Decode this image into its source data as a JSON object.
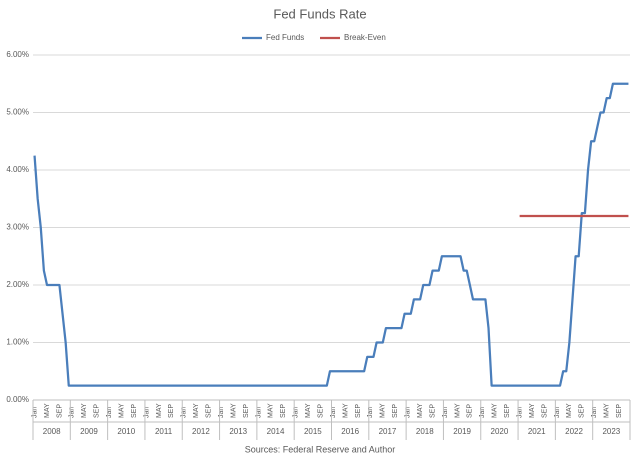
{
  "chart_data": {
    "type": "line",
    "title": "Fed Funds Rate",
    "source": "Sources: Federal Reserve and Author",
    "categories": [
      "Jan",
      null,
      null,
      null,
      "MAY",
      null,
      null,
      null,
      "SEP",
      null,
      null,
      null,
      "Jan",
      null,
      null,
      null,
      "MAY",
      null,
      null,
      null,
      "SEP",
      null,
      null,
      null,
      "Jan",
      null,
      null,
      null,
      "MAY",
      null,
      null,
      null,
      "SEP",
      null,
      null,
      null,
      "Jan",
      null,
      null,
      null,
      "MAY",
      null,
      null,
      null,
      "SEP",
      null,
      null,
      null,
      "Jan",
      null,
      null,
      null,
      "MAY",
      null,
      null,
      null,
      "SEP",
      null,
      null,
      null,
      "Jan",
      null,
      null,
      null,
      "MAY",
      null,
      null,
      null,
      "SEP",
      null,
      null,
      null,
      "Jan",
      null,
      null,
      null,
      "MAY",
      null,
      null,
      null,
      "SEP",
      null,
      null,
      null,
      "Jan",
      null,
      null,
      null,
      "MAY",
      null,
      null,
      null,
      "SEP",
      null,
      null,
      null,
      "Jan",
      null,
      null,
      null,
      "MAY",
      null,
      null,
      null,
      "SEP",
      null,
      null,
      null,
      "Jan",
      null,
      null,
      null,
      "MAY",
      null,
      null,
      null,
      "SEP",
      null,
      null,
      null,
      "Jan",
      null,
      null,
      null,
      "MAY",
      null,
      null,
      null,
      "SEP",
      null,
      null,
      null,
      "Jan",
      null,
      null,
      null,
      "MAY",
      null,
      null,
      null,
      "SEP",
      null,
      null,
      null,
      "Jan",
      null,
      null,
      null,
      "MAY",
      null,
      null,
      null,
      "SEP",
      null,
      null,
      null,
      "Jan",
      null,
      null,
      null,
      "MAY",
      null,
      null,
      null,
      "SEP",
      null,
      null,
      null,
      "Jan",
      null,
      null,
      null,
      "MAY",
      null,
      null,
      null,
      "SEP",
      null,
      null,
      null,
      "Jan",
      null,
      null,
      null,
      "MAY",
      null,
      null,
      null,
      "SEP",
      null,
      null,
      null
    ],
    "year_groups": [
      "2008",
      "2009",
      "2010",
      "2011",
      "2012",
      "2013",
      "2014",
      "2015",
      "2016",
      "2017",
      "2018",
      "2019",
      "2020",
      "2021",
      "2022",
      "2023"
    ],
    "series": [
      {
        "name": "Fed Funds",
        "color": "#4a7ebb",
        "values": [
          4.25,
          3.5,
          3.0,
          2.25,
          2.0,
          2.0,
          2.0,
          2.0,
          2.0,
          1.5,
          1.0,
          0.25,
          0.25,
          0.25,
          0.25,
          0.25,
          0.25,
          0.25,
          0.25,
          0.25,
          0.25,
          0.25,
          0.25,
          0.25,
          0.25,
          0.25,
          0.25,
          0.25,
          0.25,
          0.25,
          0.25,
          0.25,
          0.25,
          0.25,
          0.25,
          0.25,
          0.25,
          0.25,
          0.25,
          0.25,
          0.25,
          0.25,
          0.25,
          0.25,
          0.25,
          0.25,
          0.25,
          0.25,
          0.25,
          0.25,
          0.25,
          0.25,
          0.25,
          0.25,
          0.25,
          0.25,
          0.25,
          0.25,
          0.25,
          0.25,
          0.25,
          0.25,
          0.25,
          0.25,
          0.25,
          0.25,
          0.25,
          0.25,
          0.25,
          0.25,
          0.25,
          0.25,
          0.25,
          0.25,
          0.25,
          0.25,
          0.25,
          0.25,
          0.25,
          0.25,
          0.25,
          0.25,
          0.25,
          0.25,
          0.25,
          0.25,
          0.25,
          0.25,
          0.25,
          0.25,
          0.25,
          0.25,
          0.25,
          0.25,
          0.25,
          0.5,
          0.5,
          0.5,
          0.5,
          0.5,
          0.5,
          0.5,
          0.5,
          0.5,
          0.5,
          0.5,
          0.5,
          0.75,
          0.75,
          0.75,
          1.0,
          1.0,
          1.0,
          1.25,
          1.25,
          1.25,
          1.25,
          1.25,
          1.25,
          1.5,
          1.5,
          1.5,
          1.75,
          1.75,
          1.75,
          2.0,
          2.0,
          2.0,
          2.25,
          2.25,
          2.25,
          2.5,
          2.5,
          2.5,
          2.5,
          2.5,
          2.5,
          2.5,
          2.25,
          2.25,
          2.0,
          1.75,
          1.75,
          1.75,
          1.75,
          1.75,
          1.25,
          0.25,
          0.25,
          0.25,
          0.25,
          0.25,
          0.25,
          0.25,
          0.25,
          0.25,
          0.25,
          0.25,
          0.25,
          0.25,
          0.25,
          0.25,
          0.25,
          0.25,
          0.25,
          0.25,
          0.25,
          0.25,
          0.25,
          0.25,
          0.5,
          0.5,
          1.0,
          1.75,
          2.5,
          2.5,
          3.25,
          3.25,
          4.0,
          4.5,
          4.5,
          4.75,
          5.0,
          5.0,
          5.25,
          5.25,
          5.5,
          5.5,
          5.5,
          5.5,
          5.5,
          5.5
        ]
      },
      {
        "name": "Break-Even",
        "color": "#c0504d",
        "values": [
          null,
          null,
          null,
          null,
          null,
          null,
          null,
          null,
          null,
          null,
          null,
          null,
          null,
          null,
          null,
          null,
          null,
          null,
          null,
          null,
          null,
          null,
          null,
          null,
          null,
          null,
          null,
          null,
          null,
          null,
          null,
          null,
          null,
          null,
          null,
          null,
          null,
          null,
          null,
          null,
          null,
          null,
          null,
          null,
          null,
          null,
          null,
          null,
          null,
          null,
          null,
          null,
          null,
          null,
          null,
          null,
          null,
          null,
          null,
          null,
          null,
          null,
          null,
          null,
          null,
          null,
          null,
          null,
          null,
          null,
          null,
          null,
          null,
          null,
          null,
          null,
          null,
          null,
          null,
          null,
          null,
          null,
          null,
          null,
          null,
          null,
          null,
          null,
          null,
          null,
          null,
          null,
          null,
          null,
          null,
          null,
          null,
          null,
          null,
          null,
          null,
          null,
          null,
          null,
          null,
          null,
          null,
          null,
          null,
          null,
          null,
          null,
          null,
          null,
          null,
          null,
          null,
          null,
          null,
          null,
          null,
          null,
          null,
          null,
          null,
          null,
          null,
          null,
          null,
          null,
          null,
          null,
          null,
          null,
          null,
          null,
          null,
          null,
          null,
          null,
          null,
          null,
          null,
          null,
          null,
          null,
          null,
          null,
          null,
          null,
          null,
          null,
          null,
          null,
          null,
          null,
          3.2,
          3.2,
          3.2,
          3.2,
          3.2,
          3.2,
          3.2,
          3.2,
          3.2,
          3.2,
          3.2,
          3.2,
          3.2,
          3.2,
          3.2,
          3.2,
          3.2,
          3.2,
          3.2,
          3.2,
          3.2,
          3.2,
          3.2,
          3.2,
          3.2,
          3.2,
          3.2,
          3.2,
          3.2,
          3.2,
          3.2,
          3.2,
          3.2,
          3.2,
          3.2,
          3.2
        ]
      }
    ],
    "ylim": [
      0,
      6
    ],
    "yticks": [
      {
        "value": 0,
        "label": "0.00%"
      },
      {
        "value": 1,
        "label": "1.00%"
      },
      {
        "value": 2,
        "label": "2.00%"
      },
      {
        "value": 3,
        "label": "3.00%"
      },
      {
        "value": 4,
        "label": "4.00%"
      },
      {
        "value": 5,
        "label": "5.00%"
      },
      {
        "value": 6,
        "label": "6.00%"
      }
    ],
    "grid": true,
    "legend": "top"
  }
}
